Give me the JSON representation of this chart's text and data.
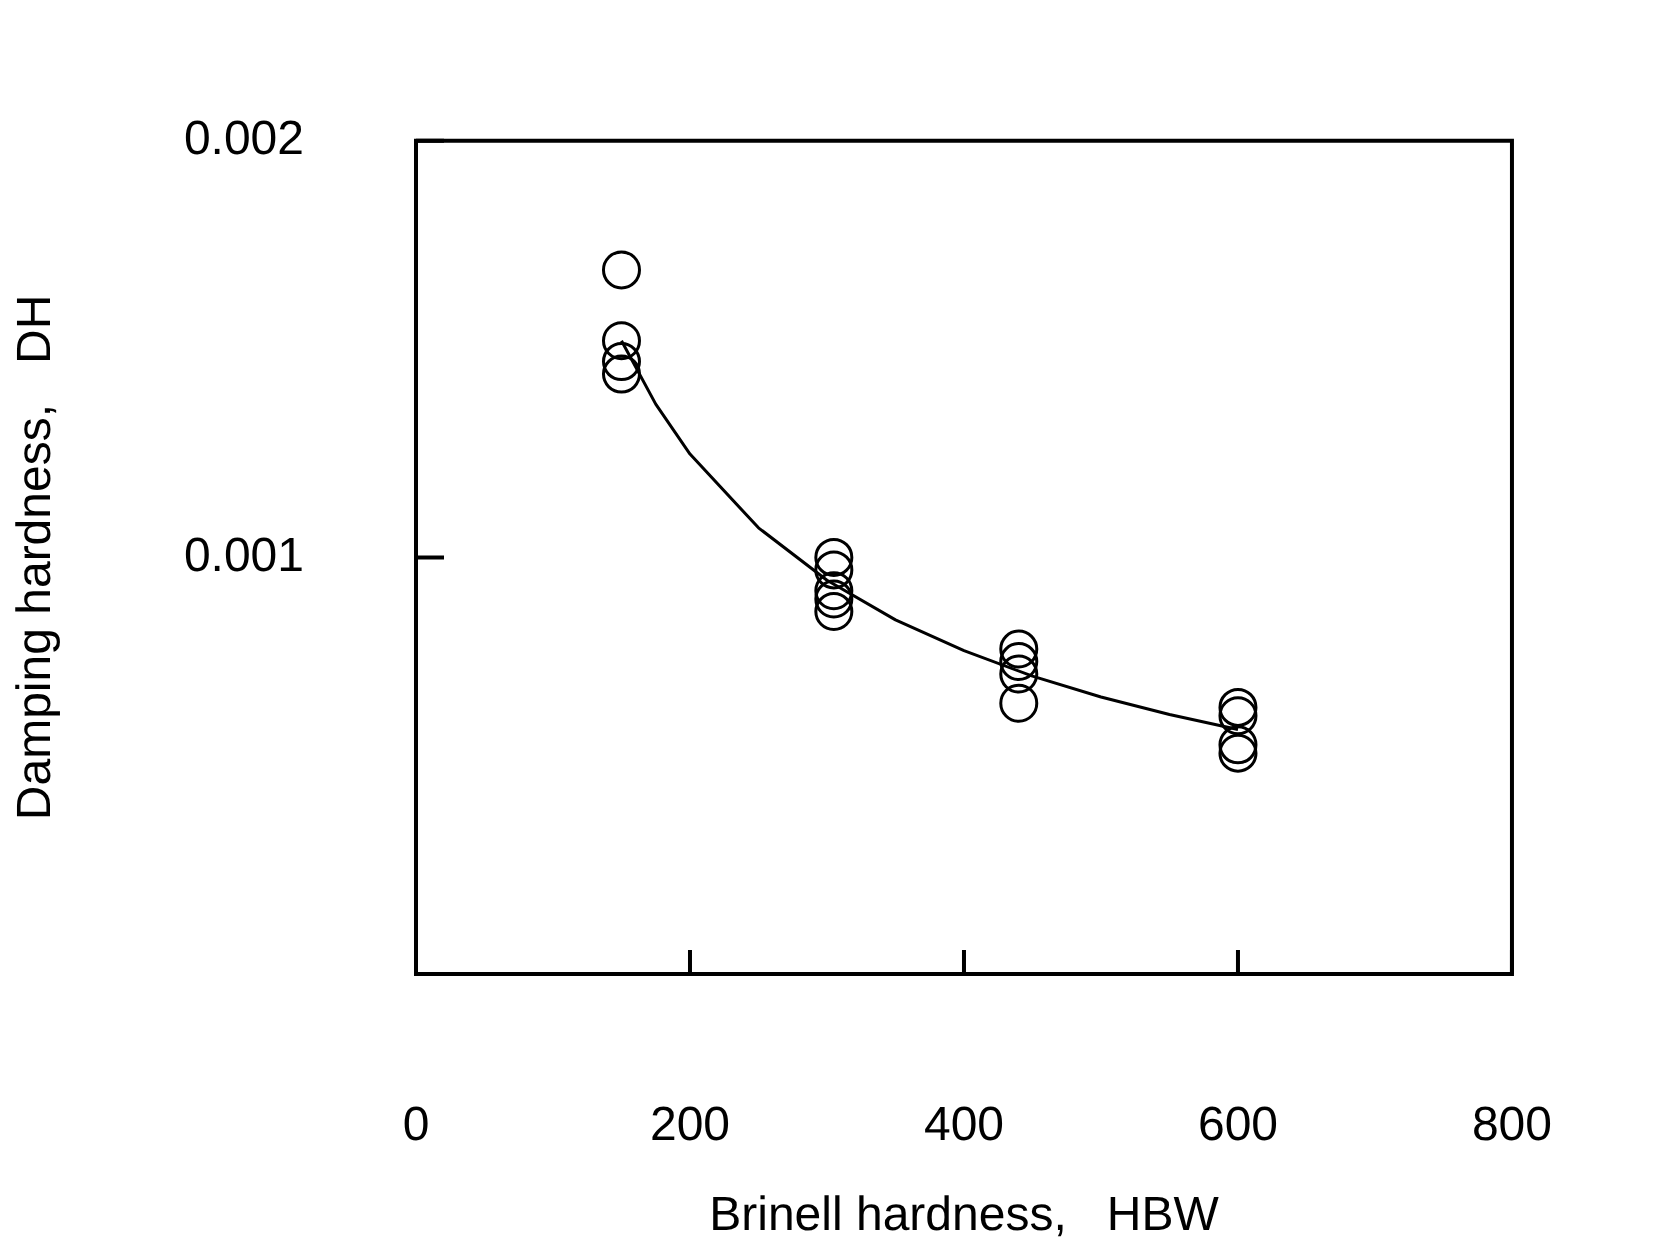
{
  "chart_data": {
    "type": "scatter",
    "xlabel": "Brinell hardness,   HBW",
    "ylabel": "Damping hardness,   DH",
    "xlim": [
      0,
      800
    ],
    "xticks": [
      0,
      200,
      400,
      600,
      800
    ],
    "ylim": [
      0,
      0.002
    ],
    "yticks": [
      0.001,
      0.002
    ],
    "grid": false,
    "legend": false,
    "series": [
      {
        "marker": "circle",
        "color": "#000000",
        "x": [
          150,
          150,
          150,
          150,
          305,
          305,
          305,
          305,
          305,
          440,
          440,
          440,
          440,
          600,
          600,
          600,
          600
        ],
        "values": [
          0.00169,
          0.00152,
          0.00147,
          0.00144,
          0.001,
          0.00097,
          0.00092,
          0.0009,
          0.00087,
          0.00078,
          0.00075,
          0.00072,
          0.00065,
          0.00064,
          0.00062,
          0.00055,
          0.00053
        ]
      },
      {
        "type": "line",
        "marker": "none",
        "color": "#000000",
        "x": [
          150,
          175,
          200,
          250,
          300,
          350,
          400,
          450,
          500,
          550,
          600
        ],
        "values": [
          0.00152,
          0.001368,
          0.001248,
          0.001071,
          0.000945,
          0.00085,
          0.000776,
          0.000715,
          0.000665,
          0.000623,
          0.000587
        ]
      }
    ]
  }
}
